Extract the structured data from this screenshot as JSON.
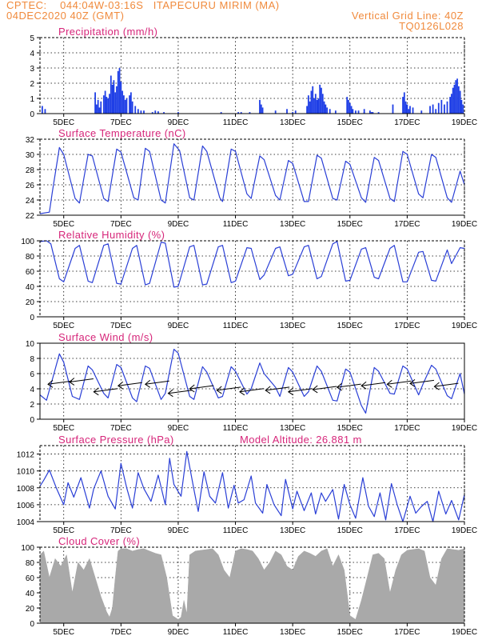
{
  "header": {
    "line1": "CPTEC:    044:04W-03:16S   ITAPECURU MIRIM (MA)",
    "line2_left": "04DEC2020 40Z (GMT)",
    "line2_right": "Vertical Grid Line: 40Z",
    "line3_right": "TQ0126L028"
  },
  "colors": {
    "header": "#f08a3c",
    "title": "#d6267a",
    "line": "#2a3fd6",
    "bar": "#1f3fe6",
    "cloud": "#a9a9a9"
  },
  "x_axis": {
    "labels": [
      "5DEC",
      "7DEC",
      "9DEC",
      "11DEC",
      "13DEC",
      "15DEC",
      "17DEC",
      "19DEC"
    ],
    "positions": [
      5,
      7,
      9,
      11,
      13,
      15,
      17,
      19
    ],
    "range": [
      4.17,
      19.0
    ]
  },
  "chart_data": [
    {
      "id": "precip",
      "type": "bar",
      "title": "Precipitation (mm/h)",
      "ylim": [
        0,
        5
      ],
      "yticks": [
        0,
        1,
        2,
        3,
        4,
        5
      ],
      "x": [
        4.25,
        4.35,
        6.1,
        6.15,
        6.2,
        6.25,
        6.3,
        6.4,
        6.45,
        6.5,
        6.55,
        6.6,
        6.65,
        6.7,
        6.75,
        6.8,
        6.85,
        6.9,
        6.95,
        7.0,
        7.05,
        7.1,
        7.15,
        7.2,
        7.3,
        7.35,
        7.4,
        7.5,
        7.6,
        7.7,
        7.8,
        8.1,
        8.2,
        8.3,
        8.5,
        9.0,
        10.5,
        11.1,
        11.2,
        11.5,
        11.85,
        11.9,
        11.95,
        12.4,
        12.8,
        13.0,
        13.1,
        13.5,
        13.55,
        13.6,
        13.65,
        13.7,
        13.75,
        13.8,
        13.85,
        13.9,
        13.95,
        14.0,
        14.05,
        14.1,
        14.15,
        14.2,
        14.3,
        14.5,
        14.9,
        14.95,
        15.0,
        15.05,
        15.1,
        15.2,
        15.3,
        15.5,
        15.5,
        15.7,
        15.75,
        15.8,
        16.0,
        16.5,
        16.85,
        16.9,
        16.95,
        17.0,
        17.05,
        17.1,
        17.2,
        17.5,
        17.8,
        17.9,
        18.0,
        18.1,
        18.2,
        18.3,
        18.4,
        18.5,
        18.55,
        18.6,
        18.65,
        18.7,
        18.75,
        18.8,
        18.85,
        18.9,
        18.95
      ],
      "values": [
        0.5,
        0.3,
        1.4,
        0.6,
        0.9,
        0.4,
        0.8,
        1.2,
        1.5,
        1.1,
        1.0,
        1.3,
        2.5,
        1.9,
        2.2,
        1.4,
        1.8,
        2.8,
        3.0,
        2.1,
        1.5,
        1.2,
        0.9,
        1.0,
        1.2,
        1.4,
        0.8,
        0.5,
        0.3,
        0.2,
        0.2,
        0.1,
        0.2,
        0.15,
        0.1,
        0.1,
        0.1,
        0.1,
        0.1,
        0.1,
        0.9,
        0.6,
        0.4,
        0.2,
        0.3,
        0.1,
        0.2,
        0.5,
        1.2,
        0.8,
        1.5,
        1.8,
        1.0,
        1.3,
        0.9,
        1.0,
        1.9,
        1.7,
        1.3,
        0.8,
        0.6,
        0.4,
        0.3,
        0.2,
        1.1,
        0.9,
        0.7,
        0.5,
        0.3,
        0.2,
        0.2,
        0.1,
        0.3,
        0.2,
        0.1,
        0.1,
        0.1,
        0.6,
        1.1,
        1.4,
        0.8,
        0.6,
        0.3,
        0.5,
        0.4,
        0.2,
        0.5,
        0.6,
        0.3,
        0.7,
        0.9,
        0.6,
        0.8,
        1.1,
        1.3,
        1.7,
        1.9,
        2.2,
        2.3,
        1.8,
        1.5,
        0.9,
        0.6
      ],
      "xlabel": "",
      "ylabel": ""
    },
    {
      "id": "temp",
      "type": "line",
      "title": "Surface Temperature (nC)",
      "ylim": [
        22,
        32
      ],
      "yticks": [
        22,
        24,
        26,
        28,
        30,
        32
      ],
      "x": [
        4.17,
        4.5,
        4.6,
        4.85,
        5.0,
        5.4,
        5.55,
        5.85,
        6.0,
        6.4,
        6.55,
        6.85,
        7.0,
        7.45,
        7.6,
        7.85,
        8.0,
        8.4,
        8.55,
        8.85,
        9.05,
        9.4,
        9.55,
        9.85,
        10.0,
        10.45,
        10.55,
        10.85,
        11.0,
        11.4,
        11.55,
        11.85,
        12.0,
        12.4,
        12.55,
        12.85,
        13.0,
        13.4,
        13.55,
        13.85,
        14.0,
        14.4,
        14.55,
        14.85,
        15.0,
        15.4,
        15.55,
        15.85,
        16.0,
        16.4,
        16.55,
        16.85,
        17.0,
        17.4,
        17.55,
        17.85,
        18.0,
        18.4,
        18.55,
        18.85,
        19.0
      ],
      "values": [
        22.2,
        22.4,
        25.0,
        30.9,
        30.0,
        24.2,
        23.6,
        30.0,
        29.8,
        24.2,
        23.8,
        30.7,
        30.3,
        24.3,
        24.0,
        30.8,
        30.4,
        24.0,
        23.6,
        31.4,
        30.5,
        24.3,
        24.0,
        31.1,
        30.4,
        24.3,
        23.8,
        30.7,
        30.4,
        24.8,
        24.2,
        29.8,
        29.3,
        24.6,
        24.0,
        29.2,
        28.8,
        23.8,
        23.8,
        29.9,
        29.5,
        24.2,
        24.0,
        29.1,
        28.7,
        24.3,
        23.7,
        29.6,
        29.2,
        24.2,
        23.8,
        30.4,
        30.0,
        24.8,
        24.3,
        30.0,
        29.6,
        24.3,
        23.7,
        27.8,
        26.0
      ],
      "xlabel": "",
      "ylabel": ""
    },
    {
      "id": "rh",
      "type": "line",
      "title": "Relative Humidity (%)",
      "ylim": [
        0,
        100
      ],
      "yticks": [
        0,
        20,
        40,
        60,
        80,
        100
      ],
      "x": [
        4.17,
        4.4,
        4.55,
        4.85,
        5.0,
        5.4,
        5.55,
        5.85,
        6.0,
        6.4,
        6.55,
        6.85,
        7.0,
        7.4,
        7.55,
        7.85,
        8.0,
        8.4,
        8.55,
        8.85,
        9.0,
        9.4,
        9.55,
        9.85,
        10.0,
        10.4,
        10.55,
        10.85,
        11.0,
        11.4,
        11.55,
        11.85,
        12.0,
        12.4,
        12.55,
        12.85,
        13.0,
        13.4,
        13.55,
        13.85,
        14.0,
        14.4,
        14.55,
        14.85,
        15.0,
        15.4,
        15.55,
        15.85,
        16.0,
        16.4,
        16.55,
        16.85,
        17.0,
        17.4,
        17.55,
        17.85,
        18.0,
        18.4,
        18.55,
        18.85,
        19.0
      ],
      "values": [
        99,
        100,
        96,
        50,
        46,
        90,
        94,
        47,
        45,
        94,
        96,
        44,
        43,
        90,
        94,
        42,
        44,
        98,
        97,
        39,
        40,
        92,
        94,
        42,
        43,
        92,
        94,
        45,
        47,
        91,
        90,
        49,
        55,
        90,
        92,
        54,
        56,
        92,
        94,
        50,
        53,
        96,
        99,
        47,
        48,
        89,
        91,
        52,
        50,
        90,
        94,
        46,
        46,
        85,
        86,
        48,
        47,
        88,
        70,
        91,
        90
      ],
      "xlabel": "",
      "ylabel": ""
    },
    {
      "id": "wind",
      "type": "line",
      "title": "Surface Wind (m/s)",
      "ylim": [
        0,
        10
      ],
      "yticks": [
        0,
        2,
        4,
        6,
        8,
        10
      ],
      "x": [
        4.17,
        4.4,
        4.6,
        4.85,
        5.0,
        5.3,
        5.55,
        5.85,
        6.0,
        6.4,
        6.55,
        6.85,
        7.0,
        7.4,
        7.55,
        7.85,
        8.0,
        8.4,
        8.55,
        8.85,
        9.0,
        9.4,
        9.55,
        9.85,
        10.0,
        10.4,
        10.55,
        10.85,
        11.0,
        11.4,
        11.55,
        11.85,
        12.0,
        12.4,
        12.55,
        12.85,
        13.0,
        13.4,
        13.55,
        13.85,
        14.0,
        14.4,
        14.55,
        14.85,
        15.0,
        15.4,
        15.55,
        15.85,
        16.0,
        16.4,
        16.55,
        16.85,
        17.0,
        17.4,
        17.55,
        17.85,
        18.0,
        18.4,
        18.55,
        18.85,
        19.0
      ],
      "values": [
        3.2,
        2.5,
        5.2,
        8.6,
        7.5,
        3.0,
        2.6,
        7.0,
        6.5,
        3.4,
        2.8,
        7.2,
        6.8,
        2.8,
        2.3,
        7.0,
        6.7,
        2.6,
        3.4,
        9.2,
        8.7,
        3.0,
        2.6,
        6.9,
        6.2,
        2.8,
        3.0,
        6.9,
        6.3,
        3.3,
        4.0,
        7.4,
        6.0,
        4.2,
        3.0,
        6.8,
        6.2,
        3.0,
        3.6,
        7.0,
        6.3,
        2.5,
        2.4,
        6.6,
        6.2,
        1.8,
        0.8,
        6.8,
        6.3,
        3.4,
        3.3,
        7.0,
        6.6,
        3.2,
        4.6,
        7.1,
        6.6,
        3.1,
        2.7,
        6.0,
        3.3
      ],
      "arrow_x": [
        4.45,
        5.2,
        6.05,
        6.9,
        7.85,
        8.65,
        9.4,
        10.35,
        11.15,
        12.05,
        12.85,
        13.7,
        14.55,
        15.4,
        16.3,
        17.1,
        17.95
      ],
      "arrow_y": [
        4.6,
        4.9,
        3.6,
        4.4,
        4.6,
        3.4,
        4.0,
        3.8,
        3.6,
        3.8,
        3.6,
        3.9,
        4.2,
        4.4,
        4.6,
        4.7,
        4.3
      ],
      "xlabel": "",
      "ylabel": ""
    },
    {
      "id": "press",
      "type": "line",
      "title": "Surface Pressure (hPa)",
      "subtitle": "Model Altitude: 26.881  m",
      "ylim": [
        1004,
        1013
      ],
      "yticks": [
        1004,
        1006,
        1008,
        1010,
        1012
      ],
      "x": [
        4.17,
        4.3,
        4.5,
        4.75,
        5.0,
        5.15,
        5.35,
        5.6,
        5.9,
        6.05,
        6.3,
        6.55,
        6.8,
        7.0,
        7.2,
        7.4,
        7.6,
        7.8,
        8.05,
        8.3,
        8.55,
        8.7,
        8.85,
        9.1,
        9.3,
        9.55,
        9.7,
        9.9,
        10.1,
        10.3,
        10.55,
        10.75,
        10.95,
        11.1,
        11.3,
        11.55,
        11.7,
        11.95,
        12.1,
        12.35,
        12.6,
        12.75,
        13.0,
        13.15,
        13.4,
        13.65,
        13.8,
        14.0,
        14.15,
        14.4,
        14.6,
        14.8,
        15.0,
        15.2,
        15.45,
        15.65,
        15.85,
        16.05,
        16.25,
        16.45,
        16.65,
        16.85,
        17.1,
        17.3,
        17.5,
        17.7,
        17.9,
        18.1,
        18.35,
        18.55,
        18.8,
        19.0
      ],
      "values": [
        1008.2,
        1008.9,
        1010.1,
        1007.9,
        1006.0,
        1008.6,
        1006.9,
        1009.2,
        1005.6,
        1007.9,
        1010.0,
        1007.0,
        1005.5,
        1010.9,
        1008.0,
        1005.6,
        1009.8,
        1007.9,
        1006.4,
        1009.5,
        1006.0,
        1011.5,
        1008.4,
        1007.0,
        1012.3,
        1007.8,
        1005.2,
        1009.9,
        1007.0,
        1006.2,
        1009.8,
        1005.6,
        1008.3,
        1006.2,
        1006.6,
        1009.4,
        1006.2,
        1005.0,
        1008.4,
        1006.0,
        1004.7,
        1009.0,
        1005.5,
        1007.6,
        1005.3,
        1007.4,
        1004.9,
        1007.4,
        1006.4,
        1007.8,
        1004.3,
        1008.4,
        1006.0,
        1004.4,
        1009.2,
        1005.8,
        1004.6,
        1007.4,
        1004.2,
        1008.5,
        1006.0,
        1004.0,
        1007.0,
        1005.0,
        1005.8,
        1006.4,
        1004.0,
        1007.6,
        1004.9,
        1006.5,
        1004.2,
        1007.2
      ],
      "xlabel": "",
      "ylabel": ""
    },
    {
      "id": "cloud",
      "type": "area",
      "title": "Cloud Cover (%)",
      "ylim": [
        0,
        100
      ],
      "yticks": [
        0,
        20,
        40,
        60,
        80,
        100
      ],
      "x": [
        4.17,
        4.3,
        4.5,
        4.7,
        4.9,
        5.1,
        5.3,
        5.5,
        5.7,
        5.9,
        6.1,
        6.3,
        6.5,
        6.6,
        6.7,
        6.8,
        6.9,
        7.0,
        7.2,
        7.4,
        7.6,
        7.8,
        8.0,
        8.2,
        8.4,
        8.6,
        8.8,
        9.0,
        9.1,
        9.2,
        9.3,
        9.4,
        9.6,
        9.8,
        10.0,
        10.2,
        10.4,
        10.6,
        10.8,
        11.0,
        11.2,
        11.4,
        11.6,
        11.8,
        12.0,
        12.2,
        12.4,
        12.6,
        12.8,
        13.0,
        13.2,
        13.4,
        13.6,
        13.8,
        14.0,
        14.2,
        14.4,
        14.6,
        14.8,
        15.0,
        15.2,
        15.4,
        15.6,
        15.8,
        16.0,
        16.2,
        16.4,
        16.6,
        16.8,
        17.0,
        17.2,
        17.4,
        17.6,
        17.8,
        18.0,
        18.2,
        18.4,
        18.6,
        18.8,
        19.0
      ],
      "values": [
        90,
        95,
        60,
        85,
        75,
        90,
        40,
        80,
        70,
        85,
        60,
        35,
        15,
        8,
        20,
        60,
        95,
        98,
        98,
        95,
        97,
        98,
        95,
        92,
        90,
        60,
        10,
        5,
        8,
        30,
        12,
        90,
        95,
        96,
        97,
        98,
        90,
        70,
        60,
        95,
        98,
        97,
        95,
        85,
        70,
        80,
        95,
        90,
        75,
        70,
        88,
        95,
        92,
        88,
        95,
        98,
        75,
        90,
        70,
        10,
        5,
        30,
        60,
        90,
        92,
        85,
        40,
        70,
        90,
        96,
        97,
        98,
        95,
        60,
        50,
        85,
        98,
        97,
        96,
        98
      ],
      "xlabel": "",
      "ylabel": ""
    }
  ]
}
